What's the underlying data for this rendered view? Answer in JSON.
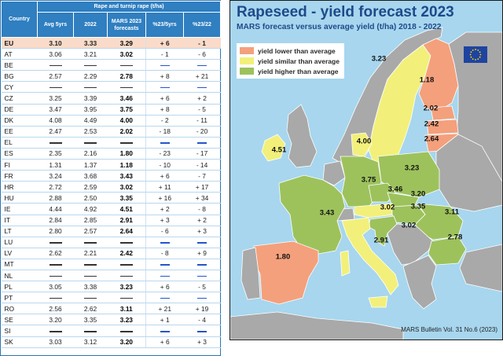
{
  "table": {
    "header_country": "Country",
    "header_group": "Rape and turnip rape (t/ha)",
    "header_avg": "Avg 5yrs",
    "header_prev": "2022",
    "header_mars": "MARS 2023 forecasts",
    "header_pct_avg": "%23/5yrs",
    "header_pct_prev": "%23/22",
    "rows": [
      {
        "country": "EU",
        "avg": "3.10",
        "prev": "3.33",
        "mars": "3.29",
        "pct_avg": "+ 6",
        "pct_prev": "- 1",
        "eu": true
      },
      {
        "country": "AT",
        "avg": "3.06",
        "prev": "3.21",
        "mars": "3.02",
        "pct_avg": "- 1",
        "pct_prev": "- 6"
      },
      {
        "country": "BE",
        "avg": null,
        "prev": null,
        "mars": null,
        "pct_avg": null,
        "pct_prev": null
      },
      {
        "country": "BG",
        "avg": "2.57",
        "prev": "2.29",
        "mars": "2.78",
        "pct_avg": "+ 8",
        "pct_prev": "+ 21"
      },
      {
        "country": "CY",
        "avg": null,
        "prev": null,
        "mars": null,
        "pct_avg": null,
        "pct_prev": null
      },
      {
        "country": "CZ",
        "avg": "3.25",
        "prev": "3.39",
        "mars": "3.46",
        "pct_avg": "+ 6",
        "pct_prev": "+ 2"
      },
      {
        "country": "DE",
        "avg": "3.47",
        "prev": "3.95",
        "mars": "3.75",
        "pct_avg": "+ 8",
        "pct_prev": "- 5"
      },
      {
        "country": "DK",
        "avg": "4.08",
        "prev": "4.49",
        "mars": "4.00",
        "pct_avg": "- 2",
        "pct_prev": "- 11"
      },
      {
        "country": "EE",
        "avg": "2.47",
        "prev": "2.53",
        "mars": "2.02",
        "pct_avg": "- 18",
        "pct_prev": "- 20"
      },
      {
        "country": "EL",
        "avg": null,
        "prev": null,
        "mars": null,
        "pct_avg": null,
        "pct_prev": null
      },
      {
        "country": "ES",
        "avg": "2.35",
        "prev": "2.16",
        "mars": "1.80",
        "pct_avg": "- 23",
        "pct_prev": "- 17"
      },
      {
        "country": "FI",
        "avg": "1.31",
        "prev": "1.37",
        "mars": "1.18",
        "pct_avg": "- 10",
        "pct_prev": "- 14"
      },
      {
        "country": "FR",
        "avg": "3.24",
        "prev": "3.68",
        "mars": "3.43",
        "pct_avg": "+ 6",
        "pct_prev": "- 7"
      },
      {
        "country": "HR",
        "avg": "2.72",
        "prev": "2.59",
        "mars": "3.02",
        "pct_avg": "+ 11",
        "pct_prev": "+ 17"
      },
      {
        "country": "HU",
        "avg": "2.88",
        "prev": "2.50",
        "mars": "3.35",
        "pct_avg": "+ 16",
        "pct_prev": "+ 34"
      },
      {
        "country": "IE",
        "avg": "4.44",
        "prev": "4.92",
        "mars": "4.51",
        "pct_avg": "+ 2",
        "pct_prev": "- 8"
      },
      {
        "country": "IT",
        "avg": "2.84",
        "prev": "2.85",
        "mars": "2.91",
        "pct_avg": "+ 3",
        "pct_prev": "+ 2"
      },
      {
        "country": "LT",
        "avg": "2.80",
        "prev": "2.57",
        "mars": "2.64",
        "pct_avg": "- 6",
        "pct_prev": "+ 3"
      },
      {
        "country": "LU",
        "avg": null,
        "prev": null,
        "mars": null,
        "pct_avg": null,
        "pct_prev": null
      },
      {
        "country": "LV",
        "avg": "2.62",
        "prev": "2.21",
        "mars": "2.42",
        "pct_avg": "- 8",
        "pct_prev": "+ 9"
      },
      {
        "country": "MT",
        "avg": null,
        "prev": null,
        "mars": null,
        "pct_avg": null,
        "pct_prev": null
      },
      {
        "country": "NL",
        "avg": null,
        "prev": null,
        "mars": null,
        "pct_avg": null,
        "pct_prev": null
      },
      {
        "country": "PL",
        "avg": "3.05",
        "prev": "3.38",
        "mars": "3.23",
        "pct_avg": "+ 6",
        "pct_prev": "- 5"
      },
      {
        "country": "PT",
        "avg": null,
        "prev": null,
        "mars": null,
        "pct_avg": null,
        "pct_prev": null
      },
      {
        "country": "RO",
        "avg": "2.56",
        "prev": "2.62",
        "mars": "3.11",
        "pct_avg": "+ 21",
        "pct_prev": "+ 19"
      },
      {
        "country": "SE",
        "avg": "3.20",
        "prev": "3.35",
        "mars": "3.23",
        "pct_avg": "+ 1",
        "pct_prev": "- 4"
      },
      {
        "country": "SI",
        "avg": null,
        "prev": null,
        "mars": null,
        "pct_avg": null,
        "pct_prev": null
      },
      {
        "country": "SK",
        "avg": "3.03",
        "prev": "3.12",
        "mars": "3.20",
        "pct_avg": "+ 6",
        "pct_prev": "+ 3"
      }
    ]
  },
  "map": {
    "title": "Rapeseed - yield forecast 2023",
    "subtitle": "MARS forecast versus average yield (t/ha) 2018 - 2022",
    "legend": [
      {
        "label": "yield lower than average",
        "color": "#f4a07c"
      },
      {
        "label": "yield similar than average",
        "color": "#f2f07a"
      },
      {
        "label": "yield higher than average",
        "color": "#9dc25c"
      }
    ],
    "colors": {
      "sea": "#a7d6ee",
      "no_data": "#a9a9a9",
      "border": "#ffffff"
    },
    "source": "MARS Bulletin Vol. 31 No.6 (2023)",
    "eu_logo": "eu-flag-icon",
    "values": [
      {
        "country": "SE",
        "value": "3.23"
      },
      {
        "country": "FI",
        "value": "1.18"
      },
      {
        "country": "EE",
        "value": "2.02"
      },
      {
        "country": "LV",
        "value": "2.42"
      },
      {
        "country": "LT",
        "value": "2.64"
      },
      {
        "country": "IE",
        "value": "4.51"
      },
      {
        "country": "DK",
        "value": "4.00"
      },
      {
        "country": "PL",
        "value": "3.23"
      },
      {
        "country": "DE",
        "value": "3.75"
      },
      {
        "country": "CZ",
        "value": "3.46"
      },
      {
        "country": "SK",
        "value": "3.20"
      },
      {
        "country": "FR",
        "value": "3.43"
      },
      {
        "country": "AT",
        "value": "3.02"
      },
      {
        "country": "HU",
        "value": "3.35"
      },
      {
        "country": "RO",
        "value": "3.11"
      },
      {
        "country": "HR",
        "value": "3.02"
      },
      {
        "country": "IT",
        "value": "2.91"
      },
      {
        "country": "BG",
        "value": "2.78"
      },
      {
        "country": "ES",
        "value": "1.80"
      }
    ]
  }
}
